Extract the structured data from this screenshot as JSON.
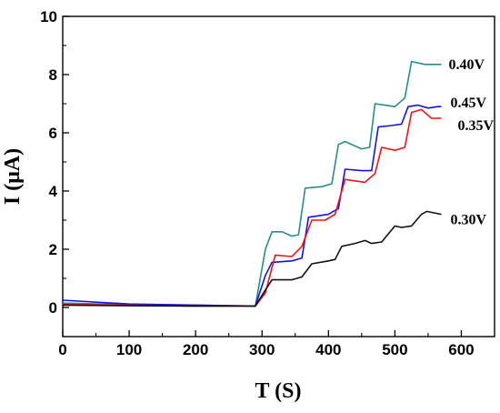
{
  "chart_data": {
    "type": "line",
    "title": "",
    "xlabel": "T (S)",
    "ylabel": "I (μA)",
    "xlim": [
      0,
      650
    ],
    "ylim": [
      -1,
      10
    ],
    "xticks": [
      0,
      100,
      200,
      300,
      400,
      500,
      600
    ],
    "yticks": [
      0,
      2,
      4,
      6,
      8,
      10
    ],
    "xtick_labels": [
      "0",
      "100",
      "200",
      "300",
      "400",
      "500",
      "600"
    ],
    "ytick_labels": [
      "0",
      "2",
      "4",
      "6",
      "8",
      "10"
    ],
    "grid": false,
    "legend": "none",
    "series": [
      {
        "name": "0.40V",
        "color": "#2a8c84",
        "x": [
          0,
          100,
          200,
          290,
          305,
          315,
          330,
          345,
          355,
          365,
          390,
          405,
          415,
          425,
          450,
          462,
          470,
          485,
          500,
          515,
          525,
          545,
          570
        ],
        "y": [
          0.15,
          0.1,
          0.08,
          0.05,
          2.0,
          2.6,
          2.6,
          2.45,
          2.5,
          4.1,
          4.15,
          4.25,
          5.6,
          5.7,
          5.45,
          5.5,
          7.0,
          6.95,
          6.9,
          7.2,
          8.45,
          8.35,
          8.35
        ]
      },
      {
        "name": "0.45V",
        "color": "#1515d6",
        "x": [
          0,
          100,
          200,
          290,
          305,
          315,
          345,
          360,
          370,
          400,
          415,
          425,
          450,
          465,
          475,
          495,
          510,
          520,
          535,
          550,
          565,
          570
        ],
        "y": [
          0.25,
          0.12,
          0.08,
          0.05,
          1.1,
          1.55,
          1.6,
          1.7,
          3.1,
          3.2,
          3.4,
          4.75,
          4.7,
          4.7,
          6.2,
          6.25,
          6.3,
          6.9,
          6.95,
          6.85,
          6.9,
          6.9
        ]
      },
      {
        "name": "0.35V",
        "color": "#e8141c",
        "x": [
          0,
          100,
          200,
          290,
          305,
          320,
          345,
          360,
          375,
          395,
          410,
          425,
          455,
          470,
          480,
          500,
          515,
          525,
          540,
          555,
          570
        ],
        "y": [
          0.1,
          0.08,
          0.05,
          0.05,
          0.5,
          1.8,
          1.75,
          2.1,
          3.0,
          3.0,
          3.2,
          4.4,
          4.3,
          4.6,
          5.5,
          5.4,
          5.5,
          6.7,
          6.8,
          6.5,
          6.5
        ]
      },
      {
        "name": "0.30V",
        "color": "#111111",
        "x": [
          0,
          100,
          200,
          290,
          305,
          315,
          345,
          360,
          375,
          400,
          410,
          420,
          440,
          455,
          465,
          480,
          500,
          510,
          525,
          540,
          548,
          570
        ],
        "y": [
          0.08,
          0.06,
          0.05,
          0.05,
          0.6,
          0.95,
          0.95,
          1.05,
          1.5,
          1.6,
          1.65,
          2.1,
          2.2,
          2.3,
          2.2,
          2.25,
          2.8,
          2.75,
          2.8,
          3.2,
          3.3,
          3.2
        ]
      }
    ],
    "series_labels": [
      "0.40V",
      "0.45V",
      "0.35V",
      "0.30V"
    ]
  }
}
